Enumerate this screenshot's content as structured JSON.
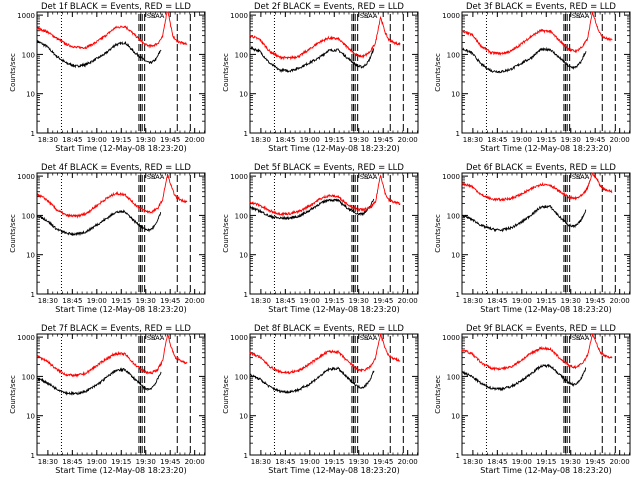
{
  "figure": {
    "x_tick_labels": [
      "18:30",
      "18:45",
      "19:00",
      "19:15",
      "19:30",
      "19:45",
      "20:00"
    ],
    "y_tick_labels": [
      "1",
      "10",
      "100",
      "1000"
    ],
    "xlabel": "Start Time (12-May-08 18:23:20)",
    "ylabel": "Counts/sec",
    "flag_labels": [
      "SR",
      "SAA"
    ]
  },
  "colors": {
    "events": "#000000",
    "lld": "#ff0000",
    "axes": "#000000",
    "background": "#ffffff"
  },
  "chart_data": [
    {
      "type": "line",
      "title": "Det 1f BLACK = Events, RED = LLD",
      "x_units": "minutes after 18:23:20",
      "xlim": [
        0,
        103
      ],
      "ylim": [
        1,
        1200
      ],
      "y_scale": "log",
      "xlabel": "Start Time (12-May-08 18:23:20)",
      "ylabel": "Counts/sec",
      "series": [
        {
          "name": "Events",
          "color": "#000000",
          "x": [
            0,
            6,
            12,
            18,
            24,
            30,
            36,
            42,
            48,
            54,
            60,
            66,
            69,
            71,
            73,
            74.5,
            76
          ],
          "y": [
            220,
            160,
            90,
            60,
            50,
            55,
            75,
            105,
            175,
            200,
            110,
            70,
            60,
            65,
            75,
            100,
            130
          ]
        },
        {
          "name": "LLD",
          "color": "#ff0000",
          "x": [
            0,
            6,
            12,
            18,
            24,
            30,
            36,
            42,
            48,
            54,
            60,
            66,
            70,
            74,
            77,
            80,
            83,
            85,
            88,
            92
          ],
          "y": [
            470,
            380,
            260,
            180,
            150,
            150,
            200,
            300,
            480,
            520,
            310,
            180,
            160,
            190,
            280,
            1500,
            320,
            230,
            200,
            180
          ]
        }
      ],
      "dashed_x": [
        62.5,
        63.5,
        64.5,
        66,
        86,
        94
      ],
      "dotted_x": [
        15
      ],
      "flags_x": [
        70,
        74
      ]
    },
    {
      "type": "line",
      "title": "Det 2f BLACK = Events, RED = LLD",
      "x_units": "minutes after 18:23:20",
      "xlim": [
        0,
        103
      ],
      "ylim": [
        1,
        1200
      ],
      "y_scale": "log",
      "xlabel": "Start Time (12-May-08 18:23:20)",
      "ylabel": "Counts/sec",
      "series": [
        {
          "name": "Events",
          "color": "#000000",
          "x": [
            0,
            6,
            12,
            18,
            24,
            30,
            36,
            42,
            48,
            54,
            60,
            66,
            69,
            71,
            73,
            74.5,
            76
          ],
          "y": [
            150,
            120,
            60,
            40,
            38,
            45,
            60,
            80,
            125,
            130,
            80,
            50,
            48,
            55,
            70,
            100,
            140
          ]
        },
        {
          "name": "LLD",
          "color": "#ff0000",
          "x": [
            0,
            6,
            12,
            18,
            24,
            30,
            36,
            42,
            48,
            54,
            60,
            66,
            70,
            74,
            77,
            80,
            83,
            85,
            88,
            92
          ],
          "y": [
            300,
            240,
            120,
            85,
            80,
            90,
            130,
            200,
            260,
            250,
            150,
            90,
            90,
            120,
            200,
            900,
            350,
            240,
            200,
            180
          ]
        }
      ],
      "dashed_x": [
        62.5,
        63.5,
        64.5,
        66,
        86,
        94
      ],
      "dotted_x": [
        15
      ],
      "flags_x": [
        70,
        74
      ]
    },
    {
      "type": "line",
      "title": "Det 3f BLACK = Events, RED = LLD",
      "x_units": "minutes after 18:23:20",
      "xlim": [
        0,
        103
      ],
      "ylim": [
        1,
        1200
      ],
      "y_scale": "log",
      "xlabel": "Start Time (12-May-08 18:23:20)",
      "ylabel": "Counts/sec",
      "series": [
        {
          "name": "Events",
          "color": "#000000",
          "x": [
            0,
            6,
            12,
            18,
            24,
            30,
            36,
            42,
            48,
            54,
            60,
            66,
            69,
            71,
            73,
            74.5,
            76
          ],
          "y": [
            140,
            110,
            55,
            38,
            36,
            42,
            58,
            80,
            130,
            135,
            80,
            48,
            46,
            52,
            65,
            90,
            120
          ]
        },
        {
          "name": "LLD",
          "color": "#ff0000",
          "x": [
            0,
            6,
            12,
            18,
            24,
            30,
            36,
            42,
            48,
            54,
            60,
            66,
            70,
            74,
            77,
            80,
            83,
            85,
            88,
            92
          ],
          "y": [
            380,
            320,
            160,
            110,
            105,
            120,
            180,
            280,
            400,
            390,
            220,
            130,
            120,
            160,
            250,
            1200,
            500,
            320,
            260,
            230
          ]
        }
      ],
      "dashed_x": [
        62.5,
        63.5,
        64.5,
        66,
        86,
        94
      ],
      "dotted_x": [
        15
      ],
      "flags_x": [
        70,
        74
      ]
    },
    {
      "type": "line",
      "title": "Det 4f BLACK = Events, RED = LLD",
      "x_units": "minutes after 18:23:20",
      "xlim": [
        0,
        103
      ],
      "ylim": [
        1,
        1200
      ],
      "y_scale": "log",
      "xlabel": "Start Time (12-May-08 18:23:20)",
      "ylabel": "Counts/sec",
      "series": [
        {
          "name": "Events",
          "color": "#000000",
          "x": [
            0,
            6,
            12,
            18,
            24,
            30,
            36,
            42,
            48,
            54,
            60,
            66,
            69,
            71,
            73,
            74.5,
            76
          ],
          "y": [
            100,
            75,
            45,
            35,
            33,
            38,
            55,
            80,
            120,
            125,
            70,
            45,
            42,
            48,
            60,
            85,
            120
          ]
        },
        {
          "name": "LLD",
          "color": "#ff0000",
          "x": [
            0,
            6,
            12,
            18,
            24,
            30,
            36,
            42,
            48,
            54,
            60,
            66,
            70,
            74,
            77,
            80,
            83,
            85,
            88,
            92
          ],
          "y": [
            350,
            250,
            140,
            100,
            95,
            110,
            170,
            260,
            360,
            340,
            190,
            130,
            120,
            150,
            250,
            1100,
            450,
            300,
            250,
            220
          ]
        }
      ],
      "dashed_x": [
        62.5,
        63.5,
        64.5,
        66,
        86,
        94
      ],
      "dotted_x": [
        15
      ],
      "flags_x": [
        70,
        74
      ]
    },
    {
      "type": "line",
      "title": "Det 5f BLACK = Events, RED = LLD",
      "x_units": "minutes after 18:23:20",
      "xlim": [
        0,
        103
      ],
      "ylim": [
        1,
        1200
      ],
      "y_scale": "log",
      "xlabel": "Start Time (12-May-08 18:23:20)",
      "ylabel": "Counts/sec",
      "series": [
        {
          "name": "Events",
          "color": "#000000",
          "x": [
            0,
            6,
            12,
            18,
            24,
            30,
            36,
            42,
            48,
            54,
            60,
            66,
            69,
            71,
            73,
            74.5,
            76
          ],
          "y": [
            160,
            130,
            95,
            85,
            85,
            95,
            130,
            190,
            250,
            240,
            150,
            110,
            110,
            125,
            150,
            200,
            260
          ]
        },
        {
          "name": "LLD",
          "color": "#ff0000",
          "x": [
            0,
            6,
            12,
            18,
            24,
            30,
            36,
            42,
            48,
            54,
            60,
            66,
            70,
            74,
            77,
            80,
            83,
            85,
            88,
            92
          ],
          "y": [
            220,
            180,
            130,
            110,
            110,
            125,
            170,
            250,
            320,
            300,
            190,
            140,
            140,
            160,
            220,
            1100,
            350,
            250,
            220,
            200
          ]
        }
      ],
      "dashed_x": [
        62.5,
        63.5,
        64.5,
        66,
        86,
        94
      ],
      "dotted_x": [
        15
      ],
      "flags_x": [
        70,
        74
      ]
    },
    {
      "type": "line",
      "title": "Det 6f BLACK = Events, RED = LLD",
      "x_units": "minutes after 18:23:20",
      "xlim": [
        0,
        103
      ],
      "ylim": [
        1,
        1200
      ],
      "y_scale": "log",
      "xlabel": "Start Time (12-May-08 18:23:20)",
      "ylabel": "Counts/sec",
      "series": [
        {
          "name": "Events",
          "color": "#000000",
          "x": [
            0,
            6,
            12,
            18,
            24,
            30,
            36,
            42,
            48,
            54,
            60,
            66,
            69,
            71,
            73,
            74.5,
            76
          ],
          "y": [
            100,
            80,
            55,
            45,
            42,
            48,
            65,
            100,
            160,
            170,
            90,
            55,
            52,
            60,
            75,
            100,
            140
          ]
        },
        {
          "name": "LLD",
          "color": "#ff0000",
          "x": [
            0,
            6,
            12,
            18,
            24,
            30,
            36,
            42,
            48,
            54,
            60,
            66,
            70,
            74,
            77,
            80,
            83,
            85,
            88,
            92
          ],
          "y": [
            650,
            550,
            330,
            260,
            250,
            270,
            340,
            460,
            620,
            600,
            400,
            280,
            270,
            330,
            500,
            1200,
            800,
            550,
            450,
            400
          ]
        }
      ],
      "dashed_x": [
        62.5,
        63.5,
        64.5,
        66,
        86,
        94
      ],
      "dotted_x": [
        15
      ],
      "flags_x": [
        70,
        74
      ]
    },
    {
      "type": "line",
      "title": "Det 7f BLACK = Events, RED = LLD",
      "x_units": "minutes after 18:23:20",
      "xlim": [
        0,
        103
      ],
      "ylim": [
        1,
        1200
      ],
      "y_scale": "log",
      "xlabel": "Start Time (12-May-08 18:23:20)",
      "ylabel": "Counts/sec",
      "series": [
        {
          "name": "Events",
          "color": "#000000",
          "x": [
            0,
            6,
            12,
            18,
            24,
            30,
            36,
            42,
            48,
            54,
            60,
            66,
            69,
            71,
            73,
            74.5,
            76
          ],
          "y": [
            90,
            70,
            48,
            38,
            36,
            42,
            58,
            90,
            140,
            150,
            85,
            50,
            47,
            55,
            70,
            95,
            130
          ]
        },
        {
          "name": "LLD",
          "color": "#ff0000",
          "x": [
            0,
            6,
            12,
            18,
            24,
            30,
            36,
            42,
            48,
            54,
            60,
            66,
            70,
            74,
            77,
            80,
            83,
            85,
            88,
            92
          ],
          "y": [
            330,
            250,
            150,
            110,
            105,
            120,
            180,
            270,
            380,
            370,
            200,
            130,
            120,
            150,
            250,
            1200,
            450,
            300,
            250,
            220
          ]
        }
      ],
      "dashed_x": [
        62.5,
        63.5,
        64.5,
        66,
        86,
        94
      ],
      "dotted_x": [
        15
      ],
      "flags_x": [
        70,
        74
      ]
    },
    {
      "type": "line",
      "title": "Det 8f BLACK = Events, RED = LLD",
      "x_units": "minutes after 18:23:20",
      "xlim": [
        0,
        103
      ],
      "ylim": [
        1,
        1200
      ],
      "y_scale": "log",
      "xlabel": "Start Time (12-May-08 18:23:20)",
      "ylabel": "Counts/sec",
      "series": [
        {
          "name": "Events",
          "color": "#000000",
          "x": [
            0,
            6,
            12,
            18,
            24,
            30,
            36,
            42,
            48,
            54,
            60,
            66,
            69,
            71,
            73,
            74.5,
            76
          ],
          "y": [
            110,
            85,
            55,
            42,
            40,
            46,
            62,
            95,
            150,
            160,
            90,
            55,
            52,
            60,
            75,
            100,
            140
          ]
        },
        {
          "name": "LLD",
          "color": "#ff0000",
          "x": [
            0,
            6,
            12,
            18,
            24,
            30,
            36,
            42,
            48,
            54,
            60,
            66,
            70,
            74,
            77,
            80,
            83,
            85,
            88,
            92
          ],
          "y": [
            400,
            310,
            180,
            130,
            125,
            140,
            200,
            300,
            430,
            420,
            240,
            150,
            140,
            180,
            300,
            1200,
            500,
            340,
            280,
            250
          ]
        }
      ],
      "dashed_x": [
        62.5,
        63.5,
        64.5,
        66,
        86,
        94
      ],
      "dotted_x": [
        15
      ],
      "flags_x": [
        70,
        74
      ]
    },
    {
      "type": "line",
      "title": "Det 9f BLACK = Events, RED = LLD",
      "x_units": "minutes after 18:23:20",
      "xlim": [
        0,
        103
      ],
      "ylim": [
        1,
        1200
      ],
      "y_scale": "log",
      "xlabel": "Start Time (12-May-08 18:23:20)",
      "ylabel": "Counts/sec",
      "series": [
        {
          "name": "Events",
          "color": "#000000",
          "x": [
            0,
            6,
            12,
            18,
            24,
            30,
            36,
            42,
            48,
            54,
            60,
            66,
            69,
            71,
            73,
            74.5,
            76
          ],
          "y": [
            130,
            100,
            65,
            50,
            48,
            55,
            75,
            115,
            180,
            190,
            110,
            65,
            62,
            70,
            90,
            120,
            160
          ]
        },
        {
          "name": "LLD",
          "color": "#ff0000",
          "x": [
            0,
            6,
            12,
            18,
            24,
            30,
            36,
            42,
            48,
            54,
            60,
            66,
            70,
            74,
            77,
            80,
            83,
            85,
            88,
            92
          ],
          "y": [
            480,
            380,
            220,
            160,
            155,
            175,
            250,
            380,
            520,
            500,
            290,
            180,
            170,
            220,
            350,
            1200,
            600,
            400,
            330,
            300
          ]
        }
      ],
      "dashed_x": [
        62.5,
        63.5,
        64.5,
        66,
        86,
        94
      ],
      "dotted_x": [
        15
      ],
      "flags_x": [
        70,
        74
      ]
    }
  ]
}
